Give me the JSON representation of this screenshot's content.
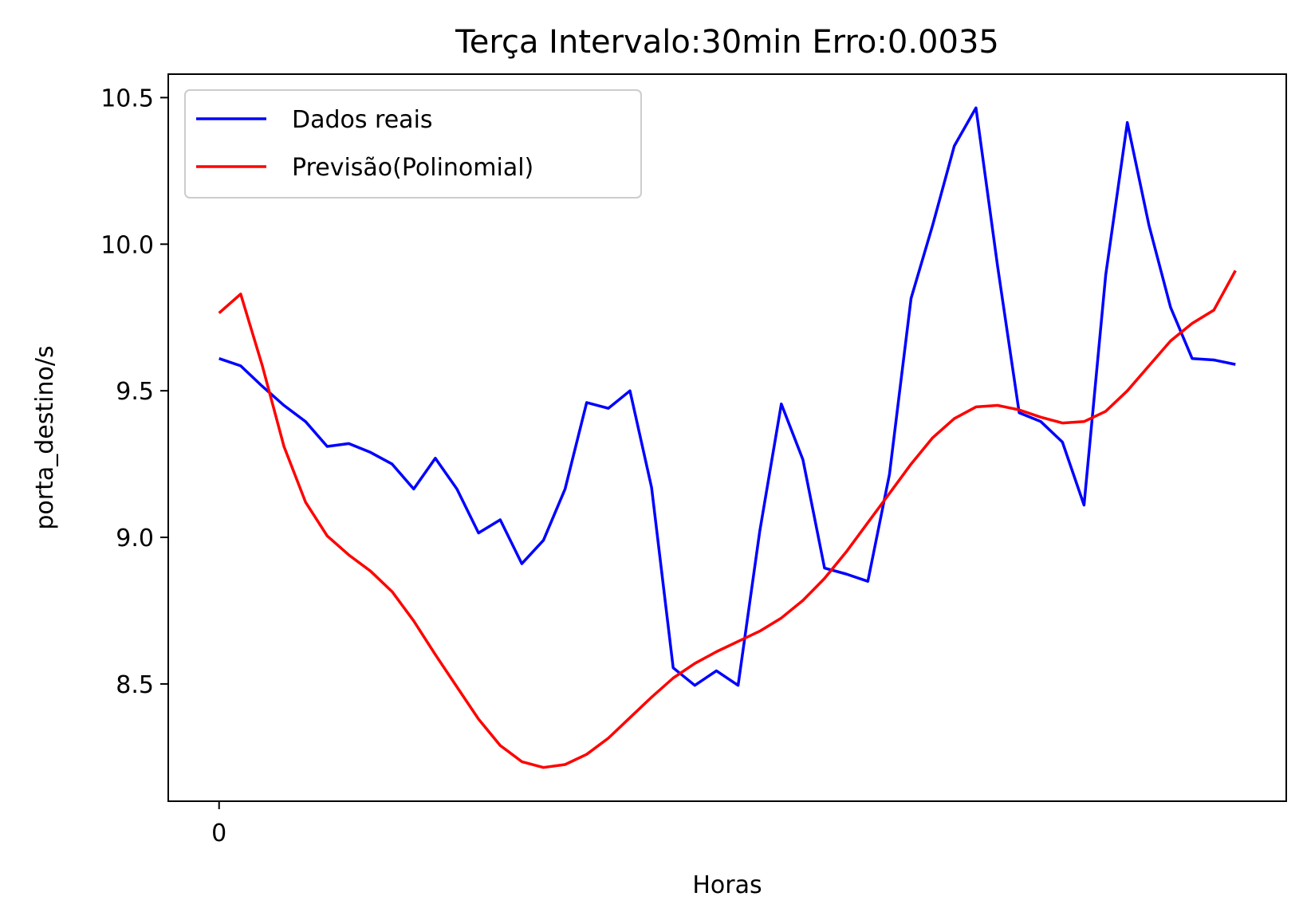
{
  "chart_data": {
    "type": "line",
    "title": "Terça Intervalo:30min Erro:0.0035",
    "xlabel": "Horas",
    "ylabel": "porta_destino/s",
    "xlim": [
      -2.35,
      49.35
    ],
    "ylim": [
      8.1,
      10.58
    ],
    "xticks": [
      0
    ],
    "xtick_labels": [
      "0"
    ],
    "yticks": [
      8.5,
      9.0,
      9.5,
      10.0,
      10.5
    ],
    "ytick_labels": [
      "8.5",
      "9.0",
      "9.5",
      "10.0",
      "10.5"
    ],
    "grid": false,
    "legend_position": "upper-left",
    "x": [
      0,
      1,
      2,
      3,
      4,
      5,
      6,
      7,
      8,
      9,
      10,
      11,
      12,
      13,
      14,
      15,
      16,
      17,
      18,
      19,
      20,
      21,
      22,
      23,
      24,
      25,
      26,
      27,
      28,
      29,
      30,
      31,
      32,
      33,
      34,
      35,
      36,
      37,
      38,
      39,
      40,
      41,
      42,
      43,
      44,
      45,
      46,
      47
    ],
    "series": [
      {
        "name": "Dados reais",
        "color": "#0000ff",
        "values": [
          9.61,
          9.585,
          9.515,
          9.45,
          9.395,
          9.31,
          9.32,
          9.29,
          9.25,
          9.165,
          9.27,
          9.165,
          9.015,
          9.06,
          8.91,
          8.99,
          9.165,
          9.46,
          9.44,
          9.5,
          9.17,
          8.555,
          8.495,
          8.545,
          8.495,
          9.02,
          9.455,
          9.265,
          8.895,
          8.875,
          8.85,
          9.215,
          9.815,
          10.065,
          10.335,
          10.465,
          9.925,
          9.425,
          9.395,
          9.325,
          9.11,
          9.895,
          10.415,
          10.065,
          9.785,
          9.61,
          9.605,
          9.59
        ]
      },
      {
        "name": "Previsão(Polinomial)",
        "color": "#ff0000",
        "values": [
          9.765,
          9.83,
          9.585,
          9.31,
          9.12,
          9.005,
          8.94,
          8.885,
          8.815,
          8.715,
          8.6,
          8.49,
          8.38,
          8.29,
          8.235,
          8.215,
          8.225,
          8.26,
          8.315,
          8.385,
          8.455,
          8.52,
          8.57,
          8.61,
          8.645,
          8.68,
          8.725,
          8.785,
          8.86,
          8.95,
          9.05,
          9.15,
          9.25,
          9.34,
          9.405,
          9.445,
          9.45,
          9.435,
          9.41,
          9.39,
          9.395,
          9.43,
          9.5,
          9.585,
          9.67,
          9.73,
          9.775,
          9.91
        ]
      }
    ]
  }
}
